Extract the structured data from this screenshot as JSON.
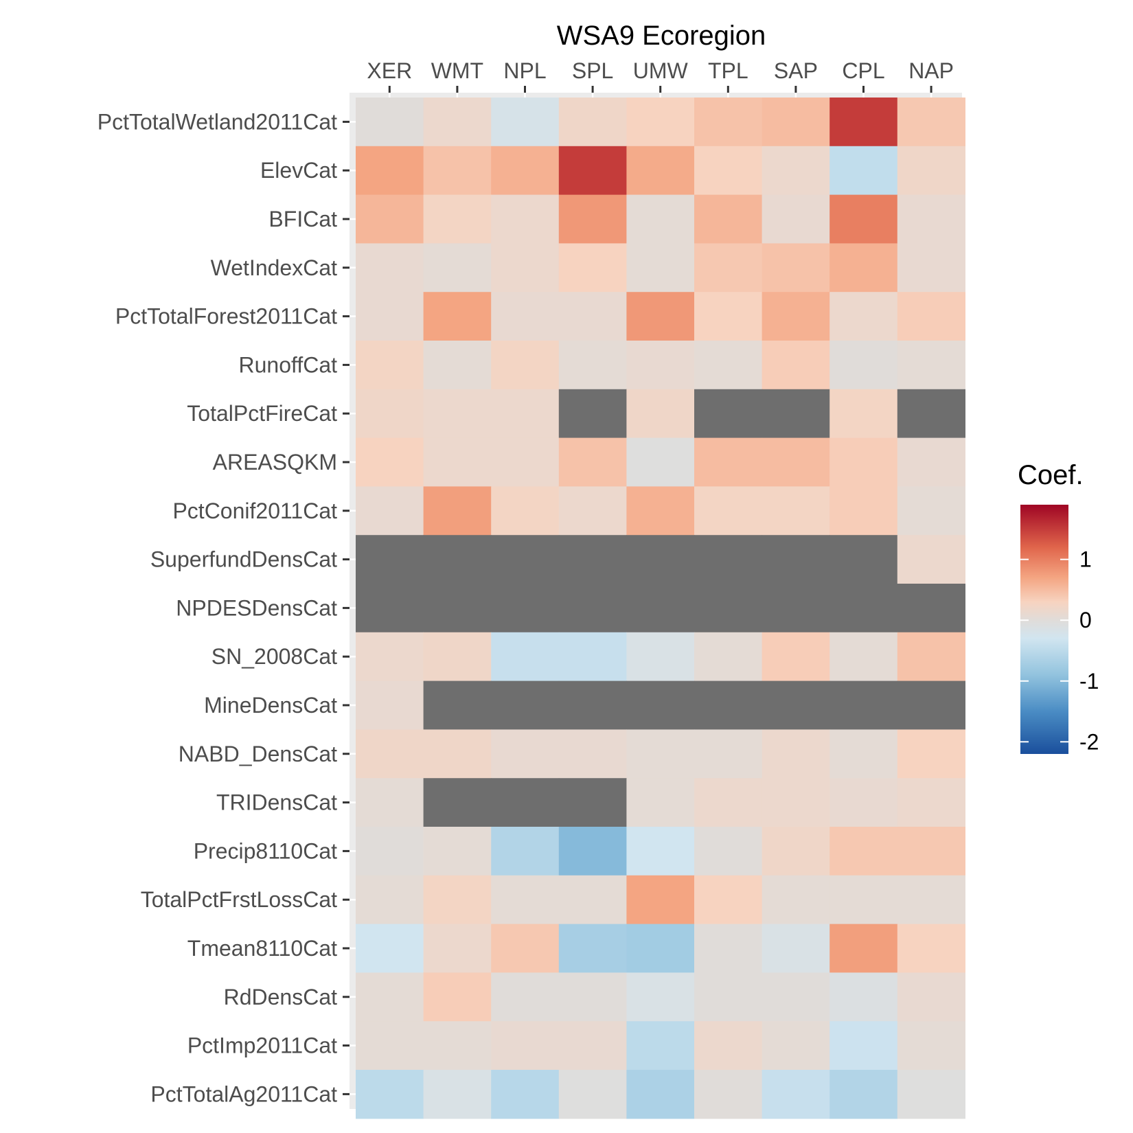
{
  "chart_data": {
    "type": "heatmap",
    "title": "WSA9 Ecoregion",
    "columns": [
      "XER",
      "WMT",
      "NPL",
      "SPL",
      "UMW",
      "TPL",
      "SAP",
      "CPL",
      "NAP"
    ],
    "rows": [
      "PctTotalWetland2011Cat",
      "ElevCat",
      "BFICat",
      "WetIndexCat",
      "PctTotalForest2011Cat",
      "RunoffCat",
      "TotalPctFireCat",
      "AREASQKM",
      "PctConif2011Cat",
      "SuperfundDensCat",
      "NPDESDensCat",
      "SN_2008Cat",
      "MineDensCat",
      "NABD_DensCat",
      "TRIDensCat",
      "Precip8110Cat",
      "TotalPctFrstLossCat",
      "Tmean8110Cat",
      "RdDensCat",
      "PctImp2011Cat",
      "PctTotalAg2011Cat"
    ],
    "values": [
      [
        0.0,
        0.15,
        -0.2,
        0.2,
        0.3,
        0.45,
        0.5,
        1.5,
        0.4
      ],
      [
        0.7,
        0.45,
        0.6,
        1.5,
        0.65,
        0.3,
        0.15,
        -0.45,
        0.2
      ],
      [
        0.55,
        0.25,
        0.15,
        0.8,
        0.05,
        0.55,
        0.1,
        1.0,
        0.1
      ],
      [
        0.1,
        0.05,
        0.15,
        0.3,
        0.05,
        0.4,
        0.45,
        0.6,
        0.1
      ],
      [
        0.1,
        0.7,
        0.1,
        0.1,
        0.8,
        0.3,
        0.6,
        0.15,
        0.35
      ],
      [
        0.25,
        0.05,
        0.25,
        0.05,
        0.1,
        0.05,
        0.35,
        0.0,
        0.05
      ],
      [
        0.2,
        0.15,
        0.15,
        null,
        0.2,
        null,
        null,
        0.25,
        null
      ],
      [
        0.3,
        0.15,
        0.15,
        0.45,
        -0.05,
        0.5,
        0.5,
        0.35,
        0.1
      ],
      [
        0.1,
        0.75,
        0.25,
        0.15,
        0.6,
        0.25,
        0.25,
        0.35,
        0.05
      ],
      [
        null,
        null,
        null,
        null,
        null,
        null,
        null,
        null,
        0.15
      ],
      [
        null,
        null,
        null,
        null,
        null,
        null,
        null,
        null,
        null
      ],
      [
        0.15,
        0.2,
        -0.4,
        -0.4,
        -0.15,
        0.05,
        0.35,
        0.05,
        0.45
      ],
      [
        0.1,
        null,
        null,
        null,
        null,
        null,
        null,
        null,
        null
      ],
      [
        0.2,
        0.2,
        0.1,
        0.1,
        0.05,
        0.05,
        0.15,
        0.05,
        0.3
      ],
      [
        0.05,
        null,
        null,
        null,
        0.05,
        0.15,
        0.15,
        0.1,
        0.15
      ],
      [
        0.0,
        0.05,
        -0.6,
        -1.0,
        -0.3,
        0.0,
        0.2,
        0.4,
        0.4
      ],
      [
        0.05,
        0.25,
        0.05,
        0.05,
        0.7,
        0.3,
        0.05,
        0.05,
        0.05
      ],
      [
        -0.3,
        0.15,
        0.4,
        -0.7,
        -0.75,
        0.0,
        -0.15,
        0.75,
        0.3
      ],
      [
        0.05,
        0.35,
        0.0,
        0.0,
        -0.15,
        0.0,
        0.0,
        -0.1,
        0.1
      ],
      [
        0.05,
        0.05,
        0.1,
        0.1,
        -0.5,
        0.15,
        0.05,
        -0.35,
        0.05
      ],
      [
        -0.5,
        -0.15,
        -0.55,
        -0.05,
        -0.65,
        0.0,
        -0.4,
        -0.6,
        -0.05
      ]
    ],
    "na_color": "#6e6e6e",
    "panel_background": "#ebebeb",
    "legend": {
      "title": "Coef.",
      "position": "right",
      "range": [
        -2.2,
        1.9
      ],
      "ticks": [
        1,
        0,
        -1,
        -2
      ],
      "tick_labels": [
        "1",
        "0",
        "-1",
        "-2"
      ],
      "palette": "RdBu reversed (blue = negative, red = positive)",
      "stops": [
        {
          "v": -2.2,
          "c": "#1a4f9c"
        },
        {
          "v": -1.5,
          "c": "#4a8cc4"
        },
        {
          "v": -0.9,
          "c": "#92c3de"
        },
        {
          "v": -0.3,
          "c": "#d1e5f0"
        },
        {
          "v": 0.0,
          "c": "#e0dcd9"
        },
        {
          "v": 0.3,
          "c": "#f7d3c0"
        },
        {
          "v": 0.7,
          "c": "#f4a582"
        },
        {
          "v": 1.2,
          "c": "#e0654b"
        },
        {
          "v": 1.9,
          "c": "#9f0524"
        }
      ]
    }
  }
}
